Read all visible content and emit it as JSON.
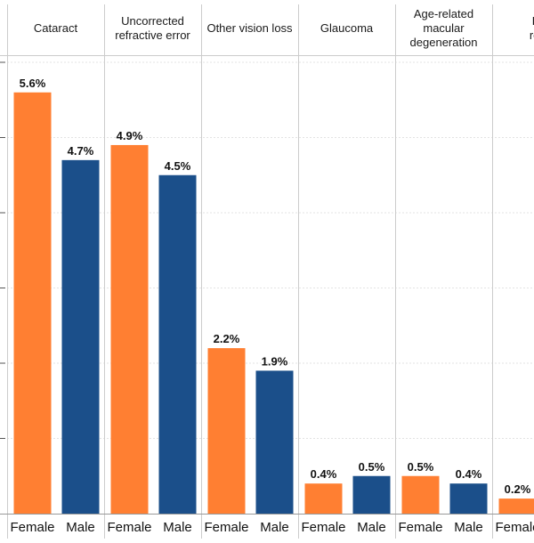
{
  "chart_data": {
    "type": "bar",
    "layout": "faceted",
    "panels": [
      {
        "title": [
          "Cataract"
        ],
        "values": [
          5.6,
          4.7
        ],
        "labels": [
          "5.6%",
          "4.7%"
        ]
      },
      {
        "title": [
          "Uncorrected",
          "refractive error"
        ],
        "values": [
          4.9,
          4.5
        ],
        "labels": [
          "4.9%",
          "4.5%"
        ]
      },
      {
        "title": [
          "Other vision loss"
        ],
        "values": [
          2.2,
          1.9
        ],
        "labels": [
          "2.2%",
          "1.9%"
        ]
      },
      {
        "title": [
          "Glaucoma"
        ],
        "values": [
          0.4,
          0.5
        ],
        "labels": [
          "0.4%",
          "0.5%"
        ]
      },
      {
        "title": [
          "Age-related",
          "macular",
          "degeneration"
        ],
        "values": [
          0.5,
          0.4
        ],
        "labels": [
          "0.5%",
          "0.4%"
        ]
      },
      {
        "title": [
          "Dia",
          "retin"
        ],
        "values": [
          0.2
        ],
        "labels": [
          "0.2%"
        ]
      }
    ],
    "categories": [
      "Female",
      "Male"
    ],
    "colors": {
      "Female": "#ff7f32",
      "Male": "#1b4f8a"
    },
    "ylim": [
      0,
      6
    ],
    "grid": true
  }
}
